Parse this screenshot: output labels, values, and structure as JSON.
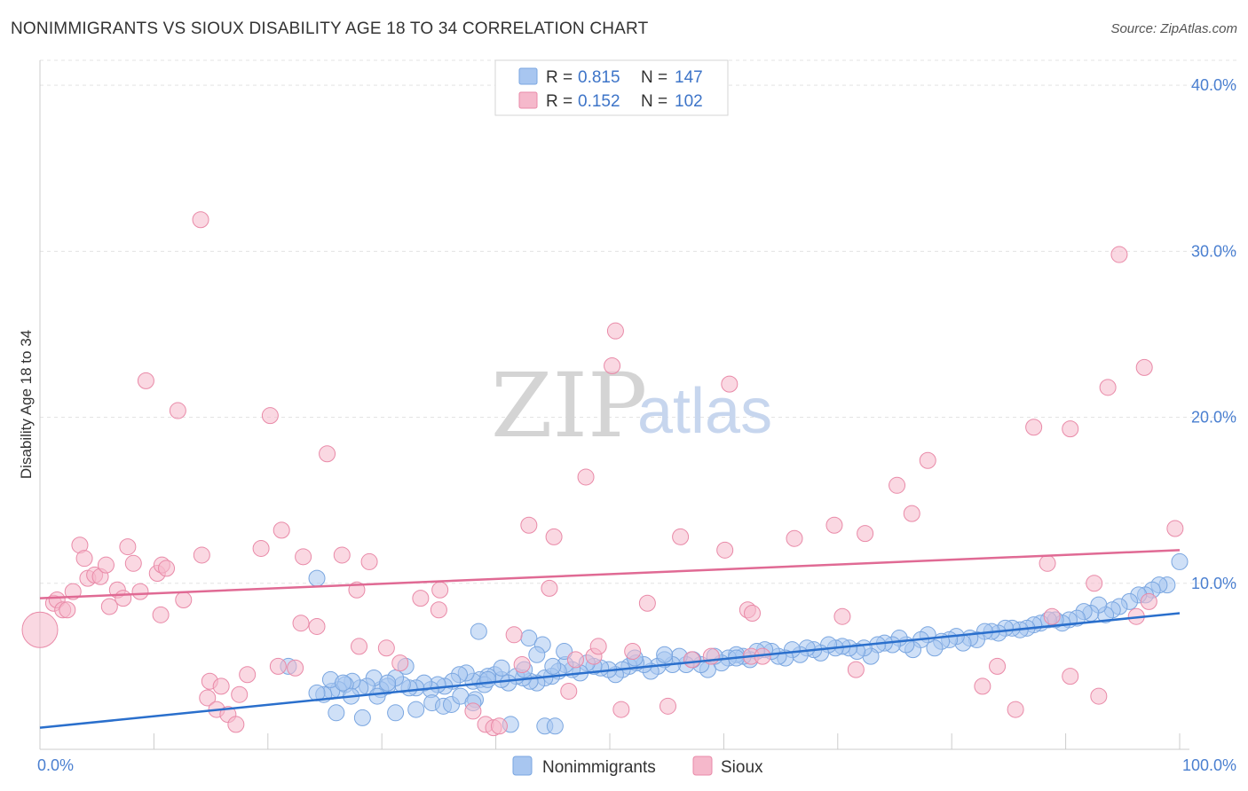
{
  "title": "NONIMMIGRANTS VS SIOUX DISABILITY AGE 18 TO 34 CORRELATION CHART",
  "source": "Source: ZipAtlas.com",
  "watermark": {
    "zip": "ZIP",
    "atlas": "atlas"
  },
  "legend": [
    {
      "r_label": "R = ",
      "r_value": "0.815",
      "n_label": "N = ",
      "n_value": "147",
      "color": "#a8c6f0"
    },
    {
      "r_label": "R = ",
      "r_value": "0.152",
      "n_label": "N = ",
      "n_value": "102",
      "color": "#f5b8cb"
    }
  ],
  "chart_data": {
    "type": "scatter",
    "title": "NONIMMIGRANTS VS SIOUX DISABILITY AGE 18 TO 34 CORRELATION CHART",
    "xlabel": "",
    "ylabel": "Disability Age 18 to 34",
    "xlim": [
      0,
      100
    ],
    "ylim": [
      0,
      41.5
    ],
    "x_tick_labels": [
      "0.0%",
      "100.0%"
    ],
    "y_ticks": [
      10,
      20,
      30,
      40
    ],
    "y_tick_labels": [
      "10.0%",
      "20.0%",
      "30.0%",
      "40.0%"
    ],
    "grid": true,
    "legend_position": "bottom",
    "series": [
      {
        "name": "Nonimmigrants",
        "color": "#a8c6f0",
        "stroke": "#7aa6e0",
        "trend_color": "#2a6fcc",
        "trend": [
          [
            0,
            1.3
          ],
          [
            100,
            8.2
          ]
        ],
        "points": [
          [
            24.3,
            10.3
          ],
          [
            100,
            11.3
          ],
          [
            98.9,
            9.9
          ],
          [
            98.2,
            9.9
          ],
          [
            97.6,
            9.6
          ],
          [
            97.0,
            9.3
          ],
          [
            96.4,
            9.3
          ],
          [
            95.6,
            8.9
          ],
          [
            94.7,
            8.6
          ],
          [
            94.1,
            8.4
          ],
          [
            93.5,
            8.1
          ],
          [
            92.9,
            8.7
          ],
          [
            92.2,
            8.2
          ],
          [
            91.6,
            8.3
          ],
          [
            91.0,
            7.9
          ],
          [
            90.3,
            7.8
          ],
          [
            89.7,
            7.6
          ],
          [
            89.1,
            7.8
          ],
          [
            88.5,
            7.8
          ],
          [
            87.8,
            7.6
          ],
          [
            87.2,
            7.5
          ],
          [
            86.6,
            7.3
          ],
          [
            86.0,
            7.2
          ],
          [
            85.3,
            7.3
          ],
          [
            84.7,
            7.3
          ],
          [
            84.1,
            7.0
          ],
          [
            83.5,
            7.1
          ],
          [
            82.9,
            7.1
          ],
          [
            82.2,
            6.6
          ],
          [
            81.6,
            6.7
          ],
          [
            81.0,
            6.4
          ],
          [
            80.4,
            6.8
          ],
          [
            79.8,
            6.6
          ],
          [
            79.1,
            6.5
          ],
          [
            78.5,
            6.1
          ],
          [
            77.9,
            6.9
          ],
          [
            77.3,
            6.6
          ],
          [
            76.6,
            6.0
          ],
          [
            76.0,
            6.3
          ],
          [
            75.4,
            6.7
          ],
          [
            74.8,
            6.3
          ],
          [
            74.1,
            6.4
          ],
          [
            73.5,
            6.3
          ],
          [
            72.9,
            5.6
          ],
          [
            72.3,
            6.1
          ],
          [
            71.7,
            5.9
          ],
          [
            71.0,
            6.1
          ],
          [
            70.4,
            6.2
          ],
          [
            69.8,
            6.1
          ],
          [
            69.2,
            6.3
          ],
          [
            68.5,
            5.8
          ],
          [
            67.9,
            6.0
          ],
          [
            67.3,
            6.1
          ],
          [
            66.7,
            5.7
          ],
          [
            66.0,
            6.0
          ],
          [
            65.4,
            5.5
          ],
          [
            64.8,
            5.6
          ],
          [
            64.2,
            5.9
          ],
          [
            63.6,
            6.0
          ],
          [
            62.9,
            5.9
          ],
          [
            62.3,
            5.4
          ],
          [
            61.7,
            5.6
          ],
          [
            61.1,
            5.7
          ],
          [
            60.4,
            5.5
          ],
          [
            59.8,
            5.2
          ],
          [
            59.2,
            5.6
          ],
          [
            58.6,
            4.8
          ],
          [
            58.0,
            5.1
          ],
          [
            57.3,
            5.4
          ],
          [
            56.7,
            5.1
          ],
          [
            56.1,
            5.6
          ],
          [
            55.5,
            5.1
          ],
          [
            54.8,
            5.4
          ],
          [
            54.2,
            5.0
          ],
          [
            53.6,
            4.7
          ],
          [
            53.0,
            5.1
          ],
          [
            52.3,
            5.2
          ],
          [
            51.7,
            5.0
          ],
          [
            51.1,
            4.8
          ],
          [
            50.5,
            4.5
          ],
          [
            49.9,
            4.8
          ],
          [
            49.2,
            4.9
          ],
          [
            48.6,
            5.0
          ],
          [
            48.0,
            5.2
          ],
          [
            47.4,
            4.6
          ],
          [
            46.7,
            4.8
          ],
          [
            46.1,
            5.1
          ],
          [
            45.5,
            4.7
          ],
          [
            44.9,
            4.4
          ],
          [
            44.3,
            4.3
          ],
          [
            43.6,
            4.0
          ],
          [
            43.0,
            4.1
          ],
          [
            42.4,
            4.3
          ],
          [
            41.8,
            4.4
          ],
          [
            41.1,
            4.0
          ],
          [
            40.5,
            4.2
          ],
          [
            39.9,
            4.5
          ],
          [
            39.3,
            4.4
          ],
          [
            38.6,
            4.2
          ],
          [
            38.0,
            4.1
          ],
          [
            37.4,
            4.6
          ],
          [
            36.8,
            4.5
          ],
          [
            36.2,
            4.1
          ],
          [
            35.5,
            3.8
          ],
          [
            34.9,
            3.9
          ],
          [
            34.3,
            3.6
          ],
          [
            33.7,
            4.0
          ],
          [
            33.0,
            3.7
          ],
          [
            32.4,
            3.7
          ],
          [
            31.8,
            3.9
          ],
          [
            31.2,
            4.3
          ],
          [
            30.5,
            3.8
          ],
          [
            29.9,
            3.6
          ],
          [
            29.3,
            4.3
          ],
          [
            28.7,
            3.8
          ],
          [
            28.1,
            3.7
          ],
          [
            27.4,
            4.1
          ],
          [
            26.8,
            3.9
          ],
          [
            26.2,
            3.6
          ],
          [
            25.6,
            3.5
          ],
          [
            24.9,
            3.3
          ],
          [
            24.3,
            3.4
          ],
          [
            21.8,
            5.0
          ],
          [
            25.5,
            4.2
          ],
          [
            26.0,
            2.2
          ],
          [
            26.6,
            4.0
          ],
          [
            27.3,
            3.2
          ],
          [
            28.3,
            1.9
          ],
          [
            29.6,
            3.2
          ],
          [
            30.5,
            4.0
          ],
          [
            31.2,
            2.2
          ],
          [
            32.1,
            5.0
          ],
          [
            33.0,
            2.4
          ],
          [
            34.4,
            2.8
          ],
          [
            35.4,
            2.6
          ],
          [
            36.1,
            2.7
          ],
          [
            36.9,
            3.2
          ],
          [
            38.2,
            3.0
          ],
          [
            38.5,
            7.1
          ],
          [
            39.0,
            3.9
          ],
          [
            38.0,
            2.8
          ],
          [
            39.3,
            4.2
          ],
          [
            41.3,
            1.5
          ],
          [
            40.5,
            4.9
          ],
          [
            42.5,
            4.8
          ],
          [
            42.9,
            6.7
          ],
          [
            44.1,
            6.3
          ],
          [
            43.6,
            5.7
          ],
          [
            44.3,
            1.4
          ],
          [
            45.2,
            1.4
          ],
          [
            45.0,
            5.0
          ],
          [
            46.0,
            5.9
          ],
          [
            52.2,
            5.5
          ],
          [
            54.8,
            5.7
          ],
          [
            61.1,
            5.5
          ]
        ]
      },
      {
        "name": "Sioux",
        "color": "#f5b8cb",
        "stroke": "#e98aa8",
        "trend_color": "#e06a94",
        "trend": [
          [
            0,
            9.1
          ],
          [
            100,
            12.0
          ]
        ],
        "points": [
          [
            0,
            7.2
          ],
          [
            1.2,
            8.8
          ],
          [
            1.5,
            9.0
          ],
          [
            2.0,
            8.4
          ],
          [
            2.4,
            8.4
          ],
          [
            2.9,
            9.5
          ],
          [
            3.5,
            12.3
          ],
          [
            3.9,
            11.5
          ],
          [
            4.2,
            10.3
          ],
          [
            4.8,
            10.5
          ],
          [
            5.3,
            10.4
          ],
          [
            5.8,
            11.1
          ],
          [
            6.1,
            8.6
          ],
          [
            6.8,
            9.6
          ],
          [
            7.3,
            9.1
          ],
          [
            7.7,
            12.2
          ],
          [
            8.2,
            11.2
          ],
          [
            8.8,
            9.5
          ],
          [
            9.3,
            22.2
          ],
          [
            10.3,
            10.6
          ],
          [
            10.6,
            8.1
          ],
          [
            10.7,
            11.1
          ],
          [
            11.1,
            10.9
          ],
          [
            12.1,
            20.4
          ],
          [
            12.6,
            9.0
          ],
          [
            14.1,
            31.9
          ],
          [
            14.2,
            11.7
          ],
          [
            14.7,
            3.1
          ],
          [
            14.9,
            4.1
          ],
          [
            15.5,
            2.4
          ],
          [
            15.9,
            3.8
          ],
          [
            16.5,
            2.1
          ],
          [
            17.2,
            1.5
          ],
          [
            17.5,
            3.3
          ],
          [
            18.2,
            4.5
          ],
          [
            19.4,
            12.1
          ],
          [
            20.2,
            20.1
          ],
          [
            20.9,
            5.0
          ],
          [
            21.2,
            13.2
          ],
          [
            22.4,
            4.9
          ],
          [
            22.9,
            7.6
          ],
          [
            23.1,
            11.6
          ],
          [
            24.3,
            7.4
          ],
          [
            25.2,
            17.8
          ],
          [
            26.5,
            11.7
          ],
          [
            27.8,
            9.6
          ],
          [
            28.0,
            6.2
          ],
          [
            28.9,
            11.3
          ],
          [
            30.4,
            6.1
          ],
          [
            31.6,
            5.2
          ],
          [
            33.4,
            9.1
          ],
          [
            35.0,
            8.4
          ],
          [
            35.1,
            9.6
          ],
          [
            38.0,
            2.3
          ],
          [
            39.1,
            1.5
          ],
          [
            39.8,
            1.3
          ],
          [
            40.3,
            1.4
          ],
          [
            41.6,
            6.9
          ],
          [
            42.3,
            5.1
          ],
          [
            42.9,
            13.5
          ],
          [
            44.7,
            9.7
          ],
          [
            45.1,
            12.8
          ],
          [
            46.4,
            3.5
          ],
          [
            47.0,
            5.4
          ],
          [
            47.9,
            16.4
          ],
          [
            48.6,
            5.6
          ],
          [
            49.0,
            6.2
          ],
          [
            50.2,
            23.1
          ],
          [
            50.5,
            25.2
          ],
          [
            51.0,
            2.4
          ],
          [
            52.0,
            5.9
          ],
          [
            53.3,
            8.8
          ],
          [
            55.1,
            2.6
          ],
          [
            56.2,
            12.8
          ],
          [
            57.2,
            5.4
          ],
          [
            58.9,
            5.6
          ],
          [
            60.1,
            12.0
          ],
          [
            60.5,
            22.0
          ],
          [
            62.1,
            8.4
          ],
          [
            62.4,
            5.6
          ],
          [
            62.5,
            8.2
          ],
          [
            63.4,
            5.6
          ],
          [
            66.2,
            12.7
          ],
          [
            69.7,
            13.5
          ],
          [
            70.4,
            8.0
          ],
          [
            71.6,
            4.8
          ],
          [
            72.4,
            13.0
          ],
          [
            75.2,
            15.9
          ],
          [
            76.5,
            14.2
          ],
          [
            77.9,
            17.4
          ],
          [
            82.7,
            3.8
          ],
          [
            84.0,
            5.0
          ],
          [
            85.6,
            2.4
          ],
          [
            87.2,
            19.4
          ],
          [
            88.4,
            11.2
          ],
          [
            88.8,
            8.0
          ],
          [
            90.4,
            19.3
          ],
          [
            90.4,
            4.4
          ],
          [
            92.5,
            10.0
          ],
          [
            92.9,
            3.2
          ],
          [
            93.7,
            21.8
          ],
          [
            94.7,
            29.8
          ],
          [
            96.2,
            8.0
          ],
          [
            96.9,
            23.0
          ],
          [
            97.3,
            8.9
          ],
          [
            99.6,
            13.3
          ]
        ]
      }
    ]
  },
  "bottom_legend": [
    "Nonimmigrants",
    "Sioux"
  ]
}
